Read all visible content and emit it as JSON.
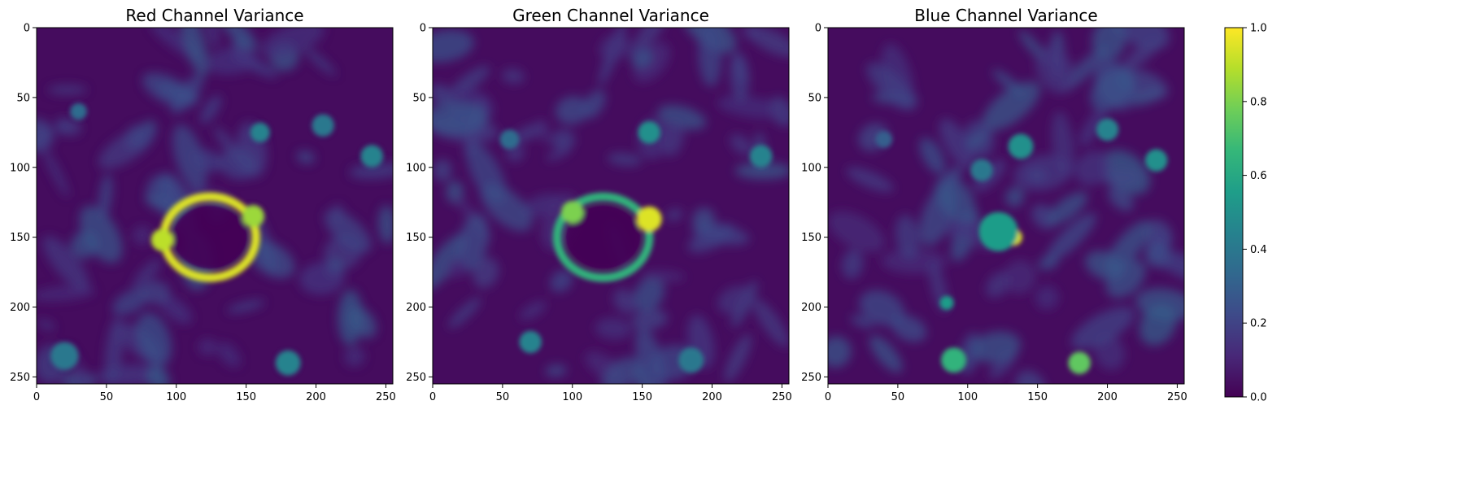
{
  "chart_data": [
    {
      "type": "heatmap",
      "title": "Red Channel Variance",
      "xlim": [
        0,
        255
      ],
      "ylim": [
        255,
        0
      ],
      "xticks": [
        0,
        50,
        100,
        150,
        200,
        250
      ],
      "yticks": [
        0,
        50,
        100,
        150,
        200,
        250
      ],
      "features": [
        {
          "type": "ring",
          "cx": 124,
          "cy": 150,
          "rx": 33,
          "ry": 29,
          "width": 6,
          "value": 0.95
        },
        {
          "type": "blob",
          "cx": 90,
          "cy": 152,
          "r": 8,
          "value": 0.9
        },
        {
          "type": "blob",
          "cx": 155,
          "cy": 135,
          "r": 8,
          "value": 0.85
        },
        {
          "type": "blob",
          "cx": 160,
          "cy": 75,
          "r": 7,
          "value": 0.45
        },
        {
          "type": "blob",
          "cx": 205,
          "cy": 70,
          "r": 8,
          "value": 0.4
        },
        {
          "type": "blob",
          "cx": 240,
          "cy": 92,
          "r": 8,
          "value": 0.45
        },
        {
          "type": "blob",
          "cx": 30,
          "cy": 60,
          "r": 6,
          "value": 0.35
        },
        {
          "type": "blob",
          "cx": 180,
          "cy": 240,
          "r": 9,
          "value": 0.45
        },
        {
          "type": "blob",
          "cx": 20,
          "cy": 235,
          "r": 10,
          "value": 0.4
        }
      ]
    },
    {
      "type": "heatmap",
      "title": "Green Channel Variance",
      "xlim": [
        0,
        255
      ],
      "ylim": [
        255,
        0
      ],
      "xticks": [
        0,
        50,
        100,
        150,
        200,
        250
      ],
      "yticks": [
        0,
        50,
        100,
        150,
        200,
        250
      ],
      "features": [
        {
          "type": "ring",
          "cx": 122,
          "cy": 150,
          "rx": 33,
          "ry": 29,
          "width": 6,
          "value": 0.65
        },
        {
          "type": "blob",
          "cx": 155,
          "cy": 137,
          "r": 9,
          "value": 0.95
        },
        {
          "type": "blob",
          "cx": 100,
          "cy": 132,
          "r": 8,
          "value": 0.8
        },
        {
          "type": "blob",
          "cx": 155,
          "cy": 75,
          "r": 8,
          "value": 0.5
        },
        {
          "type": "blob",
          "cx": 235,
          "cy": 92,
          "r": 8,
          "value": 0.45
        },
        {
          "type": "blob",
          "cx": 55,
          "cy": 80,
          "r": 7,
          "value": 0.35
        },
        {
          "type": "blob",
          "cx": 70,
          "cy": 225,
          "r": 8,
          "value": 0.45
        },
        {
          "type": "blob",
          "cx": 185,
          "cy": 238,
          "r": 9,
          "value": 0.4
        }
      ]
    },
    {
      "type": "heatmap",
      "title": "Blue Channel Variance",
      "xlim": [
        0,
        255
      ],
      "ylim": [
        255,
        0
      ],
      "xticks": [
        0,
        50,
        100,
        150,
        200,
        250
      ],
      "yticks": [
        0,
        50,
        100,
        150,
        200,
        250
      ],
      "features": [
        {
          "type": "blob",
          "cx": 133,
          "cy": 150,
          "r": 6,
          "value": 0.95
        },
        {
          "type": "blob",
          "cx": 122,
          "cy": 146,
          "r": 14,
          "value": 0.55
        },
        {
          "type": "blob",
          "cx": 138,
          "cy": 85,
          "r": 9,
          "value": 0.5
        },
        {
          "type": "blob",
          "cx": 110,
          "cy": 102,
          "r": 8,
          "value": 0.4
        },
        {
          "type": "blob",
          "cx": 200,
          "cy": 73,
          "r": 8,
          "value": 0.45
        },
        {
          "type": "blob",
          "cx": 235,
          "cy": 95,
          "r": 8,
          "value": 0.5
        },
        {
          "type": "blob",
          "cx": 180,
          "cy": 240,
          "r": 8,
          "value": 0.75
        },
        {
          "type": "blob",
          "cx": 90,
          "cy": 238,
          "r": 9,
          "value": 0.65
        },
        {
          "type": "blob",
          "cx": 85,
          "cy": 197,
          "r": 5,
          "value": 0.55
        },
        {
          "type": "blob",
          "cx": 40,
          "cy": 80,
          "r": 6,
          "value": 0.3
        }
      ]
    }
  ],
  "colorbar": {
    "range": [
      0.0,
      1.0
    ],
    "ticks": [
      "0.0",
      "0.2",
      "0.4",
      "0.6",
      "0.8",
      "1.0"
    ],
    "colormap": [
      "#440154",
      "#482878",
      "#3e4a89",
      "#31688e",
      "#26828e",
      "#1f9e89",
      "#35b779",
      "#6ece58",
      "#b5de2b",
      "#fde725"
    ]
  }
}
